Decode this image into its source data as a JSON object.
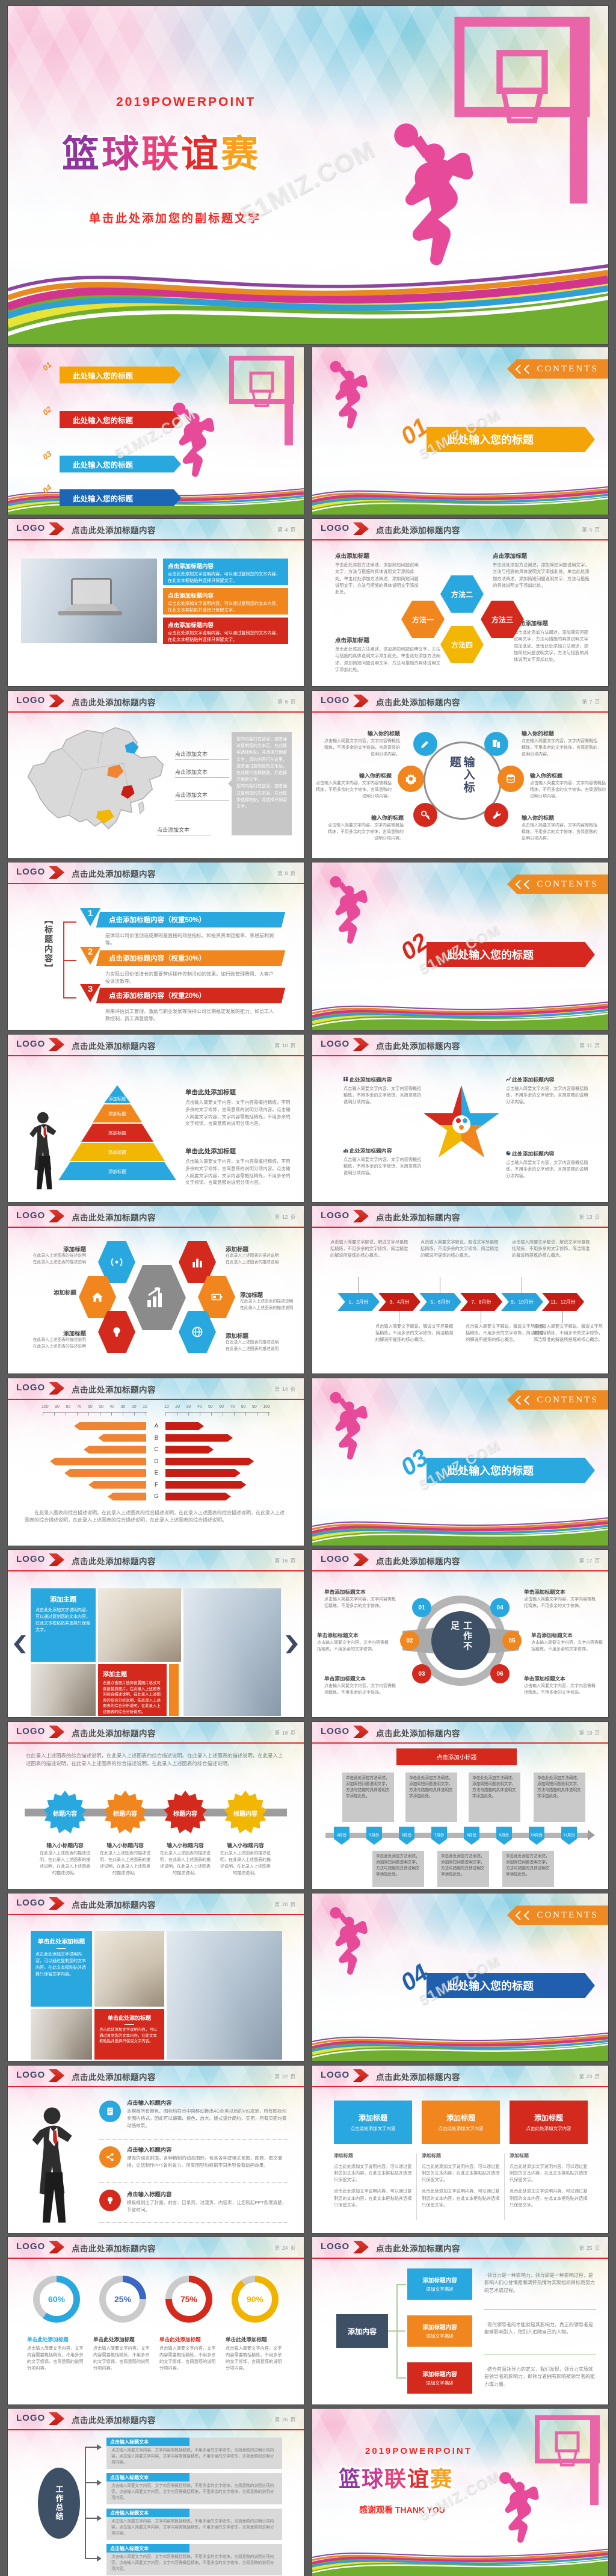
{
  "watermark": "51MIZ.COM",
  "common": {
    "logo": "LOGO",
    "header_title": "点击此处添加标题内容",
    "page_prefix": "第",
    "page_suffix": "页",
    "contents": "CONTENTS"
  },
  "cover": {
    "kicker": "2019POWERPOINT",
    "title": [
      "篮",
      "球",
      "联",
      "谊",
      "赛"
    ],
    "subtitle": "单击此处添加您的副标题文字"
  },
  "closing": {
    "kicker": "2019POWERPOINT",
    "title": [
      "篮",
      "球",
      "联",
      "谊",
      "赛"
    ],
    "thanks_cn": "感谢观看",
    "thanks_en": "THANK YOU"
  },
  "toc": {
    "items": [
      {
        "num": "01",
        "label": "此处输入您的标题"
      },
      {
        "num": "02",
        "label": "此处输入您的标题"
      },
      {
        "num": "03",
        "label": "此处输入您的标题"
      },
      {
        "num": "04",
        "label": "此处输入您的标题"
      }
    ]
  },
  "contents": {
    "banner": "此处输入您的标题",
    "nums": [
      "01",
      "02",
      "03",
      "04"
    ]
  },
  "boiler": {
    "b_click_add": "点击此处添加文字说明内容，可以通过复制您的文本内容，在此文本框粘贴并选择只保留文字。",
    "b_method": "单击此处添加方法阐述，添加简短问题说明文字，方法与措施的具体说明文字添加此处。",
    "b_brief": "点击输入简要文字内容，文字内容需概括精炼，不用多余的文字修饰，言简意赅的说明分项内容。",
    "b_brief_short": "点击输入简要文字内容，文字内容需概括精炼，不用多余的文字修饰。",
    "b_desc3": "在此录入上述图表的描述说明，在此录入上述图表的描述说明，在此录入上述图表的描述说明。",
    "b_desc_line": "在此录入上述图表的描述说明",
    "b_explain": "点击输入简要文字解说，解说文字尽量概括精炼，不用多余的文字修饰，简洁精准的解说所提炼的核心概念。",
    "b_your": "您的内容打在这里，或者通过复制您的文本后，在此框中选择粘贴，并选择只保留文字。"
  },
  "slides": {
    "s4": {
      "page": "4",
      "box_title": "点击添加标题内容"
    },
    "s5": {
      "page": "5",
      "block_title": "点击添加标题",
      "hex": [
        "方法一",
        "方法二",
        "方法三",
        "方法四"
      ]
    },
    "s6": {
      "page": "6",
      "map_label": "点击添加文本"
    },
    "s7": {
      "page": "7",
      "center": "输入标题",
      "item_title": "输入你的标题"
    },
    "s8": {
      "page": "8",
      "side_label": "【标题内容】",
      "items": [
        {
          "num": "1",
          "title": "点击添加标题内容（权重50%）",
          "body": "是体现公司价值创造成果的最直接的效益指标。如投资资本回报率、息税前利润等。"
        },
        {
          "num": "2",
          "title": "点击添加标题内容（权重30%）",
          "body": "为实现公司价值增长的重要营运操作控制活动的效果。如行政管理费用、大客户投诉次数等。"
        },
        {
          "num": "3",
          "title": "点击添加标题内容（权重20%）",
          "body": "用来评估员工管理、激励与职业发展等保持公司长期稳定发展的能力。如员工人数控制、员工满意度等。"
        }
      ]
    },
    "s10": {
      "page": "10",
      "layer_label": "添加标题",
      "sec_title": "单击此处添加标题"
    },
    "s11": {
      "page": "11",
      "item_title": "此处添加标题内容"
    },
    "s12": {
      "page": "12",
      "item_title": "添加标题"
    },
    "s13": {
      "page": "13",
      "months": [
        "1、2月份",
        "3、4月份",
        "5、6月份",
        "7、8月份",
        "9、10月份",
        "11、12月份"
      ]
    },
    "s14": {
      "page": "14",
      "chart_data": {
        "type": "bar",
        "orientation": "tornado",
        "categories": [
          "A",
          "B",
          "C",
          "D",
          "E",
          "F",
          "G"
        ],
        "series": [
          {
            "name": "左(输入文字)",
            "values": [
              75,
              50,
              65,
              100,
              85,
              60,
              40
            ]
          },
          {
            "name": "右(输入文字)",
            "values": [
              40,
              70,
              50,
              92,
              78,
              84,
              68
            ]
          }
        ],
        "axis_left": [
          "100",
          "90",
          "80",
          "70",
          "60",
          "50",
          "40",
          "30",
          "20",
          "10"
        ],
        "axis_right": [
          "10",
          "20",
          "30",
          "40",
          "50",
          "60",
          "70",
          "80",
          "90",
          "100"
        ],
        "bar_label": "输入文字",
        "caption": "在此录入图表的综合描述说明。在此录入上述图表的综合描述说明，在此录入上述图表的综合描述说明，在此录入上述图表的综合描述说明，在此录入上述图表的综合描述说明，在此录入上述图表的综合描述说明。"
      }
    },
    "s16": {
      "page": "16",
      "theme_title": "添加主题",
      "red_body": "右键点击图片选择设置图片格式可直接替换图片。在此录入上述图表的综合描述说明，在此录入上述图表的综合分析说明，在此录入上述图表的综合分析说明，在此录入上述图表的综合分析说明。"
    },
    "s17": {
      "page": "17",
      "center": "工作不足",
      "item_title": "单击添加标题文本",
      "nums": [
        "01",
        "02",
        "03",
        "04",
        "05",
        "06"
      ]
    },
    "s18": {
      "page": "18",
      "intro": "在此录入上述图表的综合描述说明，在此录入上述图表的综合描述说明。在此录入上述图表的描述说明，在此录入上述图表的描述说明，在此录入上述图表的综合描述说明，在此录入上述图表的综合描述说明。",
      "badge_label": "标题内容",
      "sub_title": "输入小标题内容"
    },
    "s19": {
      "page": "19",
      "banner": "点击添加小标题",
      "months": [
        "4月份",
        "5月份",
        "6月份",
        "7月份",
        "8月份",
        "9月份",
        "10月份",
        "11月份"
      ]
    },
    "s20": {
      "page": "20",
      "box_title": "单击此处添加标题",
      "body": "点击此处添加文字说明内容，可以通过复制您的文本内容，在此文本框粘贴并选择只保留文字内容。"
    },
    "s22": {
      "page": "22",
      "item_title": "点击输入标题内容",
      "items": [
        "本模板所有颜色、图标均符合中国移动推出4G业务以后的VIS规范，所有图标均非图片格式，因此可以编辑、换色、放大。版式设计简约、实用，所有页面均有动画效果。",
        "漂亮的动态封面，各种精制的动态图形，包含各种逻辑关系图、图表、图文混排，让您制作PPT省时省力。所有图型均根据不同类型设有动画效果。",
        "模板规划出了封面、前言、目录页、过渡页、内容页，让您制起PPT条理清楚，节省时间。"
      ]
    },
    "s23": {
      "page": "23",
      "col_title": "添加标题",
      "col_sub": "点击此处添加文字内容",
      "small_title": "添加标题"
    },
    "s24": {
      "page": "24",
      "chart_data": {
        "type": "pie",
        "style": "donut-rings",
        "labels": [
          "60%",
          "25%",
          "75%",
          "90%"
        ],
        "values": [
          60,
          25,
          75,
          90
        ]
      },
      "item_title": "单击此处添加标题",
      "body": "点击输入简要文字内容，文字内容需要概括精炼，不用多余的文字修饰，言简意赅的说明分项内容。"
    },
    "s25": {
      "page": "25",
      "left_label": "添加内容",
      "box_title": "添加标题内容",
      "box_sub": "添加文字描述",
      "bullets": [
        "领导力是一种影响力，领导即是一种影响过程，是影响人们心甘情愿和满怀热情为实现组织目标而努力的艺术或过程。",
        "现代领导者的才能就是其影响力，真正的领导者是能够影响别人，使别人追随自己的人物。",
        "结合前面领导力的定义，我们发现，领导力实质就是领导者的影响力，即领导者拥有影响被领导者的能力或力量。"
      ]
    },
    "s26": {
      "page": "26",
      "center": "工作总结",
      "box_title": "点击输入标题文本"
    }
  }
}
